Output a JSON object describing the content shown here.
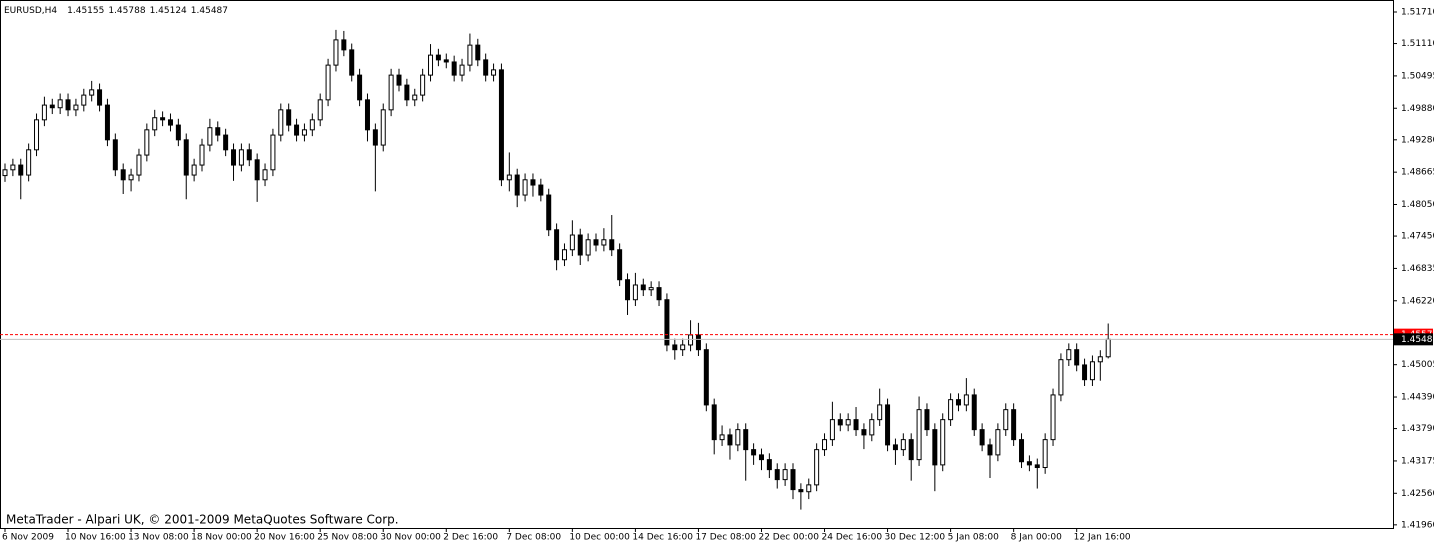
{
  "chart_data": {
    "type": "candlestick",
    "title": "EURUSD,H4",
    "copyright": "MetaTrader - Alpari UK, © 2001-2009 MetaQuotes Software Corp.",
    "bull_color": "#ffffff",
    "bear_color": "#000000",
    "wick_color": "#000000",
    "bid": 1.45487,
    "bid_color": "#c0c0c0",
    "ask": 1.45576,
    "ask_color": "#ff0000",
    "ylim": [
      1.419,
      1.519
    ],
    "yticks": [
      {
        "value": 1.5171,
        "label": "1.51710"
      },
      {
        "value": 1.5111,
        "label": "1.51110"
      },
      1.50495,
      {
        "value": 1.4988,
        "label": "1.49880"
      },
      {
        "value": 1.4928,
        "label": "1.49280"
      },
      1.48665,
      {
        "value": 1.4805,
        "label": "1.48050"
      },
      {
        "value": 1.4745,
        "label": "1.47450"
      },
      1.46835,
      {
        "value": 1.4622,
        "label": "1.46220"
      },
      1.45005,
      {
        "value": 1.4439,
        "label": "1.44390"
      },
      {
        "value": 1.4379,
        "label": "1.43790"
      },
      1.43175,
      {
        "value": 1.4256,
        "label": "1.42560"
      },
      {
        "value": 1.4196,
        "label": "1.41960"
      }
    ],
    "categories": [
      "6 Nov 2009",
      null,
      null,
      null,
      null,
      null,
      null,
      null,
      "10 Nov 16:00",
      null,
      null,
      null,
      null,
      null,
      null,
      null,
      "13 Nov 08:00",
      null,
      null,
      null,
      null,
      null,
      null,
      null,
      "18 Nov 00:00",
      null,
      null,
      null,
      null,
      null,
      null,
      null,
      "20 Nov 16:00",
      null,
      null,
      null,
      null,
      null,
      null,
      null,
      "25 Nov 08:00",
      null,
      null,
      null,
      null,
      null,
      null,
      null,
      "30 Nov 00:00",
      null,
      null,
      null,
      null,
      null,
      null,
      null,
      "2 Dec 16:00",
      null,
      null,
      null,
      null,
      null,
      null,
      null,
      "7 Dec 08:00",
      null,
      null,
      null,
      null,
      null,
      null,
      null,
      "10 Dec 00:00",
      null,
      null,
      null,
      null,
      null,
      null,
      null,
      "14 Dec 16:00",
      null,
      null,
      null,
      null,
      null,
      null,
      null,
      "17 Dec 08:00",
      null,
      null,
      null,
      null,
      null,
      null,
      null,
      "22 Dec 00:00",
      null,
      null,
      null,
      null,
      null,
      null,
      null,
      "24 Dec 16:00",
      null,
      null,
      null,
      null,
      null,
      null,
      null,
      "30 Dec 12:00",
      null,
      null,
      null,
      null,
      null,
      null,
      null,
      "5 Jan 08:00",
      null,
      null,
      null,
      null,
      null,
      null,
      null,
      "8 Jan 00:00",
      null,
      null,
      null,
      null,
      null,
      null,
      null,
      "12 Jan 16:00",
      null,
      null,
      null,
      null
    ],
    "ohlc": [
      [
        1.486,
        1.4883,
        1.4848,
        1.4871
      ],
      [
        1.4871,
        1.4892,
        1.4859,
        1.488
      ],
      [
        1.488,
        1.4892,
        1.4815,
        1.4861
      ],
      [
        1.4861,
        1.4921,
        1.4849,
        1.4909
      ],
      [
        1.4909,
        1.4978,
        1.4897,
        1.4966
      ],
      [
        1.4966,
        1.501,
        1.4954,
        1.4994
      ],
      [
        1.4994,
        1.5006,
        1.4977,
        1.4989
      ],
      [
        1.4989,
        1.5016,
        1.4977,
        1.5004
      ],
      [
        1.5004,
        1.5016,
        1.4973,
        1.4985
      ],
      [
        1.4985,
        1.5006,
        1.4973,
        1.4994
      ],
      [
        1.4994,
        1.5025,
        1.4982,
        1.5013
      ],
      [
        1.5013,
        1.504,
        1.5001,
        1.5023
      ],
      [
        1.5023,
        1.5035,
        1.4982,
        1.4994
      ],
      [
        1.4994,
        1.5006,
        1.4916,
        1.4928
      ],
      [
        1.4928,
        1.494,
        1.4859,
        1.4871
      ],
      [
        1.4871,
        1.4883,
        1.4825,
        1.4852
      ],
      [
        1.4852,
        1.4873,
        1.483,
        1.4861
      ],
      [
        1.4861,
        1.4911,
        1.4849,
        1.4899
      ],
      [
        1.4899,
        1.4959,
        1.4887,
        1.4947
      ],
      [
        1.4947,
        1.4985,
        1.4935,
        1.497
      ],
      [
        1.497,
        1.4982,
        1.4954,
        1.4966
      ],
      [
        1.4966,
        1.4978,
        1.4944,
        1.4956
      ],
      [
        1.4956,
        1.4968,
        1.4916,
        1.4928
      ],
      [
        1.4928,
        1.494,
        1.4815,
        1.4861
      ],
      [
        1.4861,
        1.4892,
        1.4849,
        1.488
      ],
      [
        1.488,
        1.493,
        1.4868,
        1.4918
      ],
      [
        1.4918,
        1.4968,
        1.4906,
        1.4951
      ],
      [
        1.4951,
        1.4963,
        1.4925,
        1.4937
      ],
      [
        1.4937,
        1.4949,
        1.4897,
        1.4909
      ],
      [
        1.4909,
        1.4921,
        1.485,
        1.488
      ],
      [
        1.488,
        1.4921,
        1.4868,
        1.4909
      ],
      [
        1.4909,
        1.4921,
        1.4878,
        1.489
      ],
      [
        1.489,
        1.4902,
        1.481,
        1.4852
      ],
      [
        1.4852,
        1.4883,
        1.484,
        1.4871
      ],
      [
        1.4871,
        1.4949,
        1.4859,
        1.4937
      ],
      [
        1.4937,
        1.4997,
        1.4925,
        1.4985
      ],
      [
        1.4985,
        1.4997,
        1.4944,
        1.4956
      ],
      [
        1.4956,
        1.4968,
        1.4925,
        1.4937
      ],
      [
        1.4937,
        1.4959,
        1.4925,
        1.4947
      ],
      [
        1.4947,
        1.4978,
        1.4935,
        1.4966
      ],
      [
        1.4966,
        1.5016,
        1.4954,
        1.5004
      ],
      [
        1.5004,
        1.5082,
        1.4992,
        1.507
      ],
      [
        1.507,
        1.5137,
        1.5058,
        1.5118
      ],
      [
        1.5118,
        1.5135,
        1.5087,
        1.5099
      ],
      [
        1.5099,
        1.5111,
        1.5039,
        1.5051
      ],
      [
        1.5051,
        1.5063,
        1.4992,
        1.5004
      ],
      [
        1.5004,
        1.5016,
        1.4925,
        1.4947
      ],
      [
        1.4947,
        1.4959,
        1.483,
        1.4918
      ],
      [
        1.4918,
        1.4997,
        1.4906,
        1.4985
      ],
      [
        1.4985,
        1.5063,
        1.4973,
        1.5051
      ],
      [
        1.5051,
        1.5063,
        1.502,
        1.5032
      ],
      [
        1.5032,
        1.5044,
        1.4992,
        1.5004
      ],
      [
        1.5004,
        1.5025,
        1.4992,
        1.5013
      ],
      [
        1.5013,
        1.5063,
        1.5001,
        1.5051
      ],
      [
        1.5051,
        1.511,
        1.5039,
        1.5089
      ],
      [
        1.5089,
        1.5101,
        1.5068,
        1.508
      ],
      [
        1.508,
        1.5092,
        1.5064,
        1.5076
      ],
      [
        1.5076,
        1.5088,
        1.5039,
        1.5051
      ],
      [
        1.5051,
        1.5082,
        1.5039,
        1.507
      ],
      [
        1.507,
        1.513,
        1.5058,
        1.5108
      ],
      [
        1.5108,
        1.512,
        1.5068,
        1.508
      ],
      [
        1.508,
        1.5092,
        1.5039,
        1.5051
      ],
      [
        1.5051,
        1.5073,
        1.5039,
        1.5061
      ],
      [
        1.5061,
        1.5073,
        1.484,
        1.4852
      ],
      [
        1.4852,
        1.4904,
        1.483,
        1.4861
      ],
      [
        1.4861,
        1.4873,
        1.48,
        1.4823
      ],
      [
        1.4823,
        1.4864,
        1.4811,
        1.4852
      ],
      [
        1.4852,
        1.4864,
        1.482,
        1.4842
      ],
      [
        1.4842,
        1.4854,
        1.4811,
        1.4823
      ],
      [
        1.4823,
        1.4835,
        1.4745,
        1.4757
      ],
      [
        1.4757,
        1.4769,
        1.468,
        1.47
      ],
      [
        1.47,
        1.4731,
        1.4688,
        1.4719
      ],
      [
        1.4719,
        1.4775,
        1.4707,
        1.4747
      ],
      [
        1.4747,
        1.4759,
        1.469,
        1.4709
      ],
      [
        1.4709,
        1.475,
        1.4697,
        1.4738
      ],
      [
        1.4738,
        1.475,
        1.4716,
        1.4728
      ],
      [
        1.4728,
        1.476,
        1.4716,
        1.4738
      ],
      [
        1.4738,
        1.4785,
        1.4707,
        1.4719
      ],
      [
        1.4719,
        1.4731,
        1.465,
        1.4662
      ],
      [
        1.4662,
        1.4674,
        1.4595,
        1.4624
      ],
      [
        1.4624,
        1.4675,
        1.4612,
        1.4652
      ],
      [
        1.4652,
        1.4664,
        1.4631,
        1.4643
      ],
      [
        1.4643,
        1.4659,
        1.4631,
        1.4647
      ],
      [
        1.4647,
        1.4659,
        1.4612,
        1.4624
      ],
      [
        1.4624,
        1.4636,
        1.4526,
        1.4538
      ],
      [
        1.4538,
        1.455,
        1.451,
        1.4529
      ],
      [
        1.4529,
        1.455,
        1.4517,
        1.4538
      ],
      [
        1.4538,
        1.4585,
        1.4526,
        1.4557
      ],
      [
        1.4557,
        1.458,
        1.4517,
        1.4529
      ],
      [
        1.4529,
        1.4541,
        1.4412,
        1.4424
      ],
      [
        1.4424,
        1.4436,
        1.433,
        1.4358
      ],
      [
        1.4358,
        1.4385,
        1.4346,
        1.4367
      ],
      [
        1.4367,
        1.4379,
        1.432,
        1.4348
      ],
      [
        1.4348,
        1.4389,
        1.4336,
        1.4377
      ],
      [
        1.4377,
        1.4389,
        1.428,
        1.4339
      ],
      [
        1.4339,
        1.4351,
        1.431,
        1.4329
      ],
      [
        1.4329,
        1.4341,
        1.43,
        1.432
      ],
      [
        1.432,
        1.4332,
        1.4285,
        1.4301
      ],
      [
        1.4301,
        1.4313,
        1.4265,
        1.4282
      ],
      [
        1.4282,
        1.4313,
        1.427,
        1.4301
      ],
      [
        1.4301,
        1.4313,
        1.4245,
        1.4263
      ],
      [
        1.4263,
        1.4275,
        1.4225,
        1.4259
      ],
      [
        1.4259,
        1.4284,
        1.4245,
        1.4272
      ],
      [
        1.4272,
        1.4351,
        1.426,
        1.4339
      ],
      [
        1.4339,
        1.437,
        1.4327,
        1.4358
      ],
      [
        1.4358,
        1.443,
        1.4346,
        1.4396
      ],
      [
        1.4396,
        1.4408,
        1.4374,
        1.4386
      ],
      [
        1.4386,
        1.4408,
        1.4374,
        1.4396
      ],
      [
        1.4396,
        1.442,
        1.4365,
        1.4377
      ],
      [
        1.4377,
        1.4389,
        1.434,
        1.4367
      ],
      [
        1.4367,
        1.4408,
        1.4355,
        1.4396
      ],
      [
        1.4396,
        1.4455,
        1.4384,
        1.4424
      ],
      [
        1.4424,
        1.4436,
        1.4336,
        1.4348
      ],
      [
        1.4348,
        1.436,
        1.431,
        1.4339
      ],
      [
        1.4339,
        1.437,
        1.4327,
        1.4358
      ],
      [
        1.4358,
        1.437,
        1.428,
        1.432
      ],
      [
        1.432,
        1.444,
        1.4308,
        1.4415
      ],
      [
        1.4415,
        1.4427,
        1.4365,
        1.4377
      ],
      [
        1.4377,
        1.4389,
        1.426,
        1.431
      ],
      [
        1.431,
        1.4408,
        1.4298,
        1.4396
      ],
      [
        1.4396,
        1.4446,
        1.4384,
        1.4434
      ],
      [
        1.4434,
        1.4446,
        1.4412,
        1.4424
      ],
      [
        1.4424,
        1.4475,
        1.4412,
        1.4443
      ],
      [
        1.4443,
        1.4455,
        1.4365,
        1.4377
      ],
      [
        1.4377,
        1.4389,
        1.4336,
        1.4348
      ],
      [
        1.4348,
        1.436,
        1.4285,
        1.4329
      ],
      [
        1.4329,
        1.4389,
        1.4317,
        1.4377
      ],
      [
        1.4377,
        1.4427,
        1.4365,
        1.4415
      ],
      [
        1.4415,
        1.4427,
        1.4346,
        1.4358
      ],
      [
        1.4358,
        1.437,
        1.4304,
        1.4316
      ],
      [
        1.4316,
        1.4328,
        1.4298,
        1.431
      ],
      [
        1.431,
        1.4322,
        1.4265,
        1.4305
      ],
      [
        1.4305,
        1.437,
        1.4293,
        1.4358
      ],
      [
        1.4358,
        1.4455,
        1.4346,
        1.4443
      ],
      [
        1.4443,
        1.4522,
        1.4431,
        1.451
      ],
      [
        1.451,
        1.4541,
        1.4498,
        1.4529
      ],
      [
        1.4529,
        1.4541,
        1.4488,
        1.45
      ],
      [
        1.45,
        1.4512,
        1.446,
        1.4472
      ],
      [
        1.4472,
        1.4518,
        1.446,
        1.4506
      ],
      [
        1.4506,
        1.4528,
        1.447,
        1.45155
      ],
      [
        1.45155,
        1.45788,
        1.45124,
        1.45487
      ]
    ]
  }
}
